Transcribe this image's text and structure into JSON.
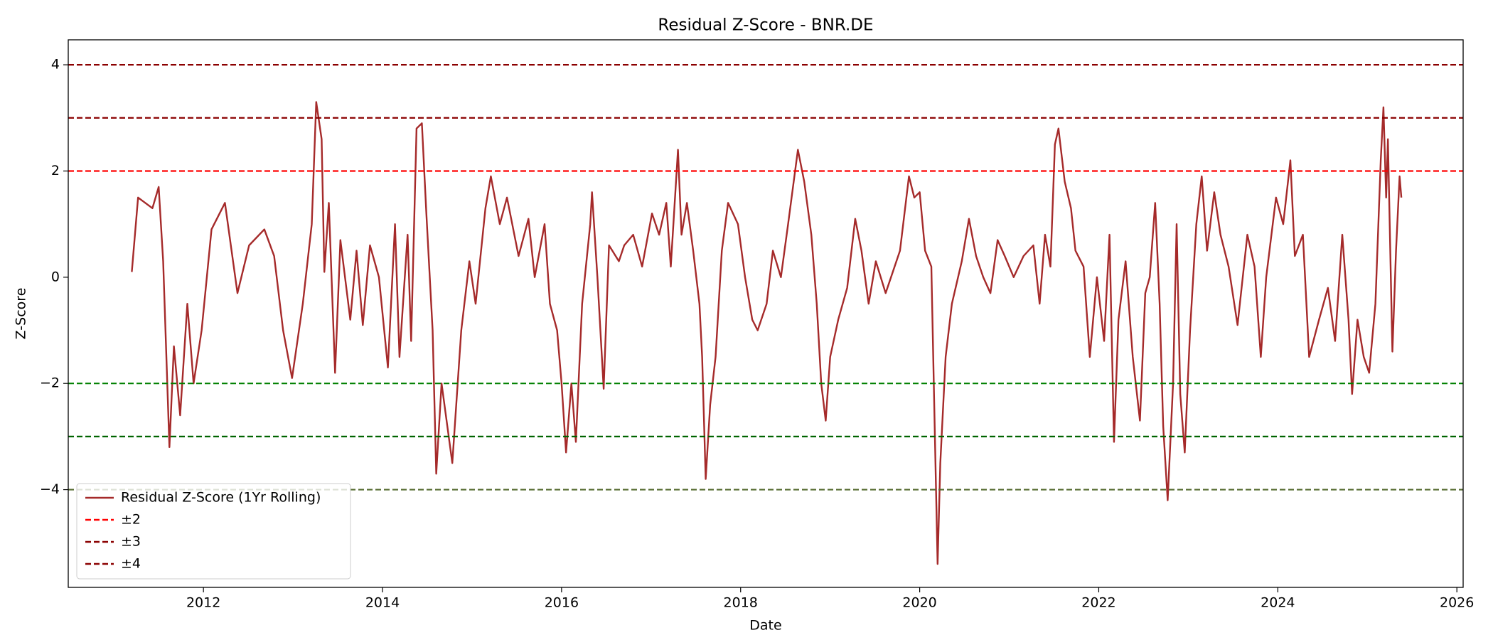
{
  "chart_data": {
    "type": "line",
    "title": "Residual Z-Score - BNR.DE",
    "x_label": "Date",
    "y_label": "Z-Score",
    "xlim": [
      2010.49,
      2026.07
    ],
    "ylim": [
      -5.84,
      4.47
    ],
    "xticks": [
      2012,
      2014,
      2016,
      2018,
      2020,
      2022,
      2024,
      2026
    ],
    "yticks": [
      {
        "value": -4,
        "label": "−4"
      },
      {
        "value": -2,
        "label": "−2"
      },
      0,
      2,
      4
    ],
    "legend": "lower left",
    "x": [
      2011.2,
      2011.27,
      2011.43,
      2011.5,
      2011.55,
      2011.62,
      2011.67,
      2011.74,
      2011.82,
      2011.89,
      2011.98,
      2012.09,
      2012.24,
      2012.38,
      2012.51,
      2012.68,
      2012.79,
      2012.89,
      2012.99,
      2013.11,
      2013.21,
      2013.26,
      2013.32,
      2013.35,
      2013.4,
      2013.47,
      2013.53,
      2013.64,
      2013.71,
      2013.78,
      2013.86,
      2013.96,
      2014.06,
      2014.14,
      2014.19,
      2014.28,
      2014.32,
      2014.38,
      2014.44,
      2014.49,
      2014.56,
      2014.6,
      2014.66,
      2014.78,
      2014.88,
      2014.97,
      2015.04,
      2015.15,
      2015.21,
      2015.31,
      2015.39,
      2015.52,
      2015.63,
      2015.7,
      2015.81,
      2015.87,
      2015.95,
      2016.0,
      2016.05,
      2016.11,
      2016.16,
      2016.23,
      2016.32,
      2016.34,
      2016.4,
      2016.47,
      2016.53,
      2016.64,
      2016.7,
      2016.8,
      2016.9,
      2017.01,
      2017.09,
      2017.17,
      2017.22,
      2017.3,
      2017.34,
      2017.4,
      2017.47,
      2017.54,
      2017.57,
      2017.61,
      2017.66,
      2017.72,
      2017.79,
      2017.86,
      2017.97,
      2018.05,
      2018.13,
      2018.19,
      2018.29,
      2018.36,
      2018.45,
      2018.53,
      2018.64,
      2018.71,
      2018.79,
      2018.85,
      2018.9,
      2018.95,
      2019.0,
      2019.09,
      2019.19,
      2019.28,
      2019.35,
      2019.43,
      2019.51,
      2019.62,
      2019.78,
      2019.88,
      2019.94,
      2020.0,
      2020.06,
      2020.13,
      2020.17,
      2020.2,
      2020.23,
      2020.29,
      2020.36,
      2020.47,
      2020.55,
      2020.63,
      2020.71,
      2020.79,
      2020.87,
      2020.95,
      2021.05,
      2021.16,
      2021.27,
      2021.34,
      2021.4,
      2021.46,
      2021.51,
      2021.55,
      2021.62,
      2021.69,
      2021.74,
      2021.83,
      2021.9,
      2021.98,
      2022.06,
      2022.12,
      2022.17,
      2022.22,
      2022.3,
      2022.38,
      2022.46,
      2022.52,
      2022.57,
      2022.63,
      2022.68,
      2022.72,
      2022.77,
      2022.83,
      2022.87,
      2022.91,
      2022.96,
      2023.02,
      2023.09,
      2023.15,
      2023.21,
      2023.29,
      2023.36,
      2023.45,
      2023.55,
      2023.66,
      2023.74,
      2023.81,
      2023.87,
      2023.98,
      2024.06,
      2024.14,
      2024.19,
      2024.28,
      2024.35,
      2024.46,
      2024.56,
      2024.64,
      2024.72,
      2024.79,
      2024.83,
      2024.89,
      2024.96,
      2025.02,
      2025.09,
      2025.15,
      2025.18,
      2025.21,
      2025.23,
      2025.28,
      2025.32,
      2025.36,
      2025.38
    ],
    "series": [
      {
        "name": "Residual Z-Score (1Yr Rolling)",
        "color": "#a52a2a",
        "values": [
          0.1,
          1.5,
          1.3,
          1.7,
          0.3,
          -3.2,
          -1.3,
          -2.6,
          -0.5,
          -2.0,
          -1.0,
          0.9,
          1.4,
          -0.3,
          0.6,
          0.9,
          0.4,
          -1.0,
          -1.9,
          -0.5,
          1.0,
          3.3,
          2.6,
          0.1,
          1.4,
          -1.8,
          0.7,
          -0.8,
          0.5,
          -0.9,
          0.6,
          0.0,
          -1.7,
          1.0,
          -1.5,
          0.8,
          -1.2,
          2.8,
          2.9,
          1.2,
          -1.0,
          -3.7,
          -2.0,
          -3.5,
          -1.0,
          0.3,
          -0.5,
          1.3,
          1.9,
          1.0,
          1.5,
          0.4,
          1.1,
          0.0,
          1.0,
          -0.5,
          -1.0,
          -2.0,
          -3.3,
          -2.0,
          -3.1,
          -0.5,
          1.0,
          1.6,
          0.0,
          -2.1,
          0.6,
          0.3,
          0.6,
          0.8,
          0.2,
          1.2,
          0.8,
          1.4,
          0.2,
          2.4,
          0.8,
          1.4,
          0.5,
          -0.5,
          -1.5,
          -3.8,
          -2.4,
          -1.5,
          0.5,
          1.4,
          1.0,
          0.0,
          -0.8,
          -1.0,
          -0.5,
          0.5,
          0.0,
          1.0,
          2.4,
          1.8,
          0.8,
          -0.5,
          -2.0,
          -2.7,
          -1.5,
          -0.8,
          -0.2,
          1.1,
          0.5,
          -0.5,
          0.3,
          -0.3,
          0.5,
          1.9,
          1.5,
          1.6,
          0.5,
          0.2,
          -3.0,
          -5.4,
          -3.5,
          -1.5,
          -0.5,
          0.3,
          1.1,
          0.4,
          0.0,
          -0.3,
          0.7,
          0.4,
          0.0,
          0.4,
          0.6,
          -0.5,
          0.8,
          0.2,
          2.5,
          2.8,
          1.8,
          1.3,
          0.5,
          0.2,
          -1.5,
          0.0,
          -1.2,
          0.8,
          -3.1,
          -0.8,
          0.3,
          -1.5,
          -2.7,
          -0.3,
          0.0,
          1.4,
          -0.5,
          -2.8,
          -4.2,
          -2.0,
          1.0,
          -2.2,
          -3.3,
          -1.0,
          1.0,
          1.9,
          0.5,
          1.6,
          0.8,
          0.2,
          -0.9,
          0.8,
          0.2,
          -1.5,
          0.0,
          1.5,
          1.0,
          2.2,
          0.4,
          0.8,
          -1.5,
          -0.8,
          -0.2,
          -1.2,
          0.8,
          -0.8,
          -2.2,
          -0.8,
          -1.5,
          -1.8,
          -0.5,
          2.2,
          3.2,
          1.5,
          2.6,
          -1.4,
          0.5,
          1.9,
          1.5
        ]
      }
    ],
    "reference_lines": [
      {
        "name": "±2",
        "color": "#ff0000",
        "upper": 2,
        "lower": -2,
        "lower_color": "#008000"
      },
      {
        "name": "±3",
        "color": "#8b0000",
        "upper": 3,
        "lower": -3,
        "lower_color": "#006400"
      },
      {
        "name": "±4",
        "color": "#8b0000",
        "upper": 4,
        "lower": -4,
        "lower_color": "#556b2f"
      }
    ]
  }
}
